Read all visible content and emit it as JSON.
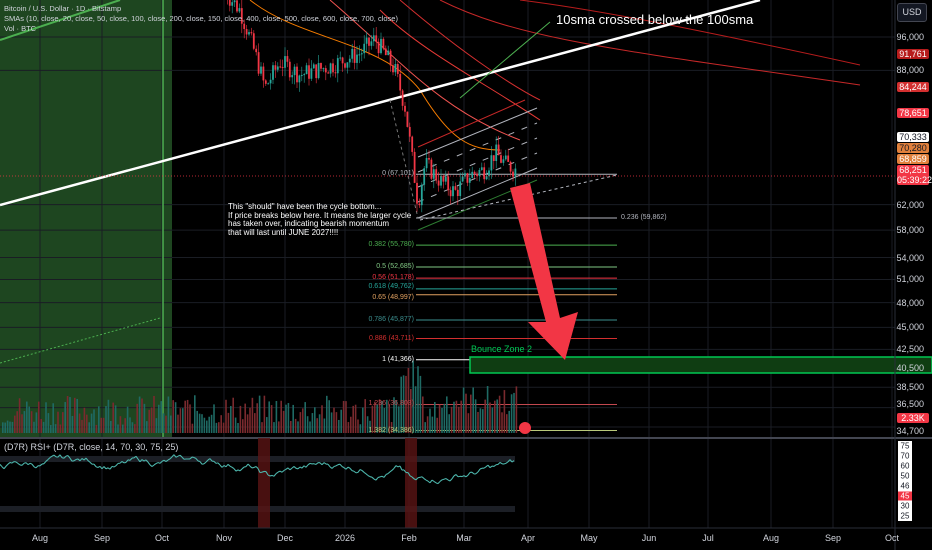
{
  "header": {
    "symbol_line": "Bitcoin / U.S. Dollar · 1D · Bitstamp",
    "sma_line": "SMAs (10, close, 20, close, 50, close, 100, close, 200, close, 150, close, 400, close, 500, close, 600, close, 700, close)",
    "vol_line": "Vol · BTC"
  },
  "currency_button": "USD",
  "annotations": {
    "sma_cross": "10sma crossed below the 100sma",
    "cycle_note": "This \"should\" have been the cycle bottom...\nIf price breaks below here. It means the larger cycle\nhas taken over, indicating bearish momentum\nthat will last until JUNE 2027!!!!",
    "bounce_zone": "Bounce Zone 2"
  },
  "price_axis": [
    "96,000",
    "88,000",
    "62,000",
    "58,000",
    "54,000",
    "51,000",
    "48,000",
    "45,000",
    "42,500",
    "40,500",
    "38,500",
    "36,500",
    "34,700"
  ],
  "price_tags": [
    {
      "text": "91,761",
      "bg": "#b71c1c",
      "fg": "#ffffff",
      "price": 91761
    },
    {
      "text": "84,244",
      "bg": "#d32f2f",
      "fg": "#ffffff",
      "price": 84244
    },
    {
      "text": "78,651",
      "bg": "#f23645",
      "fg": "#ffffff",
      "price": 78651
    },
    {
      "text": "70,333",
      "bg": "#ffffff",
      "fg": "#131722",
      "price": 70333
    },
    {
      "text": "70,280",
      "bg": "#e0803c",
      "fg": "#131722",
      "price": 70280
    },
    {
      "text": "68,859",
      "bg": "#e0803c",
      "fg": "#ffffff",
      "price": 68859
    },
    {
      "text": "68,251",
      "bg": "#f23645",
      "fg": "#ffffff",
      "price": 67700
    },
    {
      "text": "2.33K",
      "bg": "#f23645",
      "fg": "#ffffff",
      "price": 35500
    }
  ],
  "countdown": "05:39:22",
  "fib_levels": [
    {
      "label": "0 (67,101)",
      "price": 67101,
      "color": "#b2b5be"
    },
    {
      "label": "0.236 (59,862)",
      "price": 59862,
      "color": "#b2b5be"
    },
    {
      "label": "0.382 (55,780)",
      "price": 55780,
      "color": "#4caf50"
    },
    {
      "label": "0.5 (52,685)",
      "price": 52685,
      "color": "#81c784"
    },
    {
      "label": "0.56 (51,178)",
      "price": 51178,
      "color": "#f23645"
    },
    {
      "label": "0.618 (49,762)",
      "price": 49762,
      "color": "#26a69a"
    },
    {
      "label": "0.65 (48,997)",
      "price": 48997,
      "color": "#e0a060"
    },
    {
      "label": "0.786 (45,877)",
      "price": 45877,
      "color": "#3c8f8f"
    },
    {
      "label": "0.886 (43,711)",
      "price": 43711,
      "color": "#d32f2f"
    },
    {
      "label": "1 (41,366)",
      "price": 41366,
      "color": "#ffffff"
    },
    {
      "label": "1.236 (36,803)",
      "price": 36803,
      "color": "#c2484f"
    },
    {
      "label": "1.382 (34,386)",
      "price": 34386,
      "color": "#b9c97a"
    }
  ],
  "rsi": {
    "legend": "(D7R) RSI+ (D7R, close, 14, 70, 30, 75, 25)",
    "axis": [
      "75",
      "70",
      "60",
      "50",
      "46",
      "45",
      "30",
      "25"
    ],
    "current": "45"
  },
  "time_axis": [
    "Aug",
    "Sep",
    "Oct",
    "Nov",
    "Dec",
    "2026",
    "Feb",
    "Mar",
    "Apr",
    "May",
    "Jun",
    "Jul",
    "Aug",
    "Sep",
    "Oct"
  ],
  "colors": {
    "up": "#26a69a",
    "down": "#f23645",
    "accent_green": "#00c853",
    "arrow": "#f23645"
  }
}
